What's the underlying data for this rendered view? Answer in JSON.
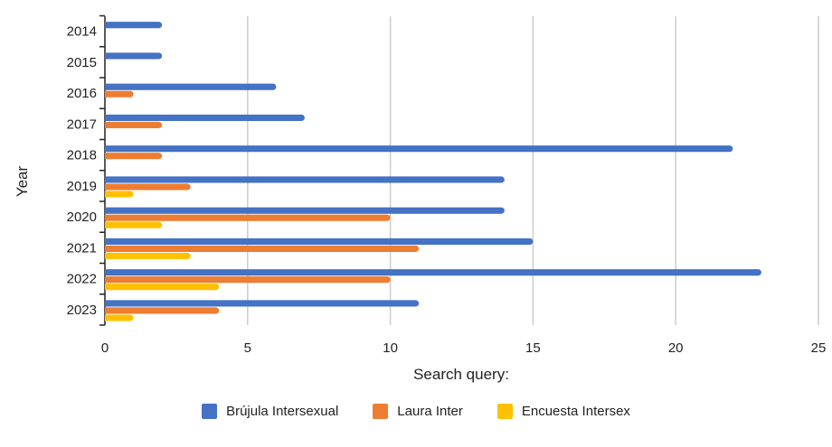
{
  "chart_data": {
    "type": "bar",
    "orientation": "horizontal",
    "categories": [
      "2014",
      "2015",
      "2016",
      "2017",
      "2018",
      "2019",
      "2020",
      "2021",
      "2022",
      "2023"
    ],
    "series": [
      {
        "name": "Brújula Intersexual",
        "color": "#4472C4",
        "values": [
          2,
          2,
          6,
          7,
          22,
          14,
          14,
          15,
          23,
          11
        ]
      },
      {
        "name": "Laura Inter",
        "color": "#ED7D31",
        "values": [
          0,
          0,
          1,
          2,
          2,
          3,
          10,
          11,
          10,
          4
        ]
      },
      {
        "name": "Encuesta Intersex",
        "color": "#FFC000",
        "values": [
          0,
          0,
          0,
          0,
          0,
          1,
          2,
          3,
          4,
          1
        ]
      }
    ],
    "xlabel": "Search query:",
    "ylabel": "Year",
    "xlim": [
      0,
      25
    ],
    "xticks": [
      0,
      5,
      10,
      15,
      20,
      25
    ],
    "grid": "vertical",
    "legend_position": "bottom"
  }
}
